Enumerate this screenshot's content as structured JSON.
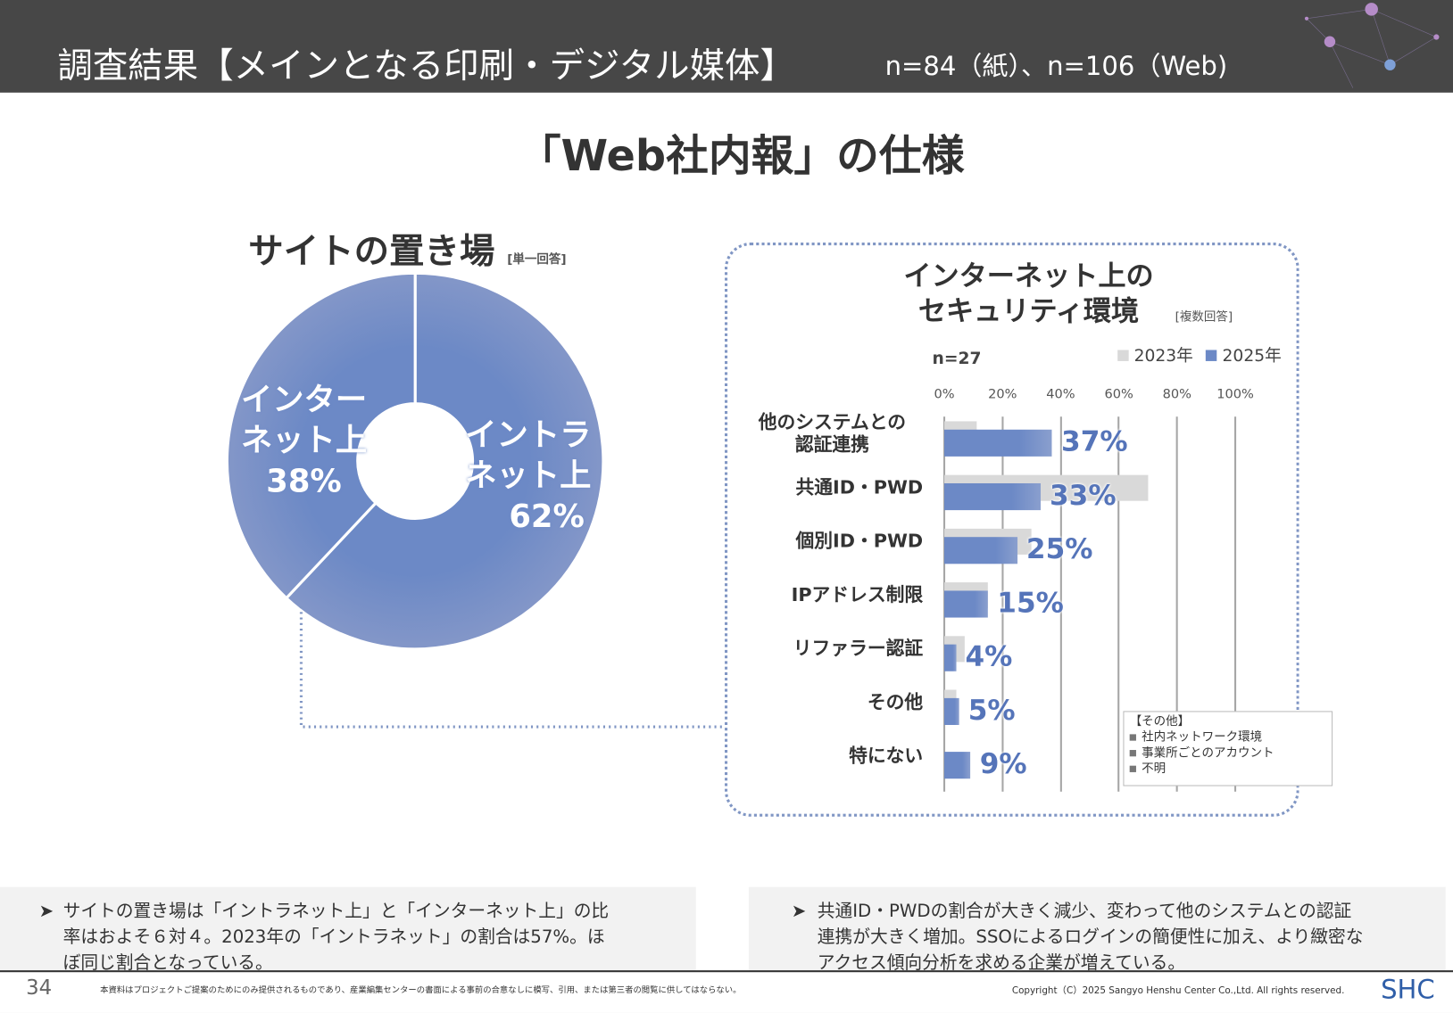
{
  "header": {
    "title": "調査結果【メインとなる印刷・デジタル媒体】",
    "sample": "n=84（紙）、n=106（Web)"
  },
  "main_title": "「Web社内報」の仕様",
  "pie": {
    "title": "サイトの置き場",
    "note": "[単一回答]",
    "slices": [
      {
        "label1": "イントラ",
        "label2": "ネット上",
        "pct": "62%",
        "value": 62
      },
      {
        "label1": "インター",
        "label2": "ネット上",
        "pct": "38%",
        "value": 38
      }
    ],
    "color": "#6c89c6"
  },
  "security": {
    "title1": "インターネット上の",
    "title2": "セキュリティ環境",
    "note": "[複数回答]",
    "n": "n=27",
    "legend": [
      "2023年",
      "2025年"
    ]
  },
  "chart_data": {
    "type": "bar",
    "orientation": "horizontal",
    "categories": [
      [
        "他のシステムとの",
        "認証連携"
      ],
      [
        "共通ID・PWD"
      ],
      [
        "個別ID・PWD"
      ],
      [
        "IPアドレス制限"
      ],
      [
        "リファラー認証"
      ],
      [
        "その他"
      ],
      [
        "特にない"
      ]
    ],
    "series": [
      {
        "name": "2023年",
        "values": [
          11,
          70,
          30,
          15,
          7,
          4,
          0
        ],
        "color": "#d9d9d9"
      },
      {
        "name": "2025年",
        "values": [
          37,
          33,
          25,
          15,
          4,
          5,
          9
        ],
        "color": "#6c89c6",
        "labels": [
          "37%",
          "33%",
          "25%",
          "15%",
          "4%",
          "5%",
          "9%"
        ]
      }
    ],
    "xticks": [
      "0%",
      "20%",
      "40%",
      "60%",
      "80%",
      "100%"
    ],
    "xlim": [
      0,
      100
    ],
    "grid": true,
    "legend": "top-right"
  },
  "other_box": {
    "title": "【その他】",
    "items": [
      "社内ネットワーク環境",
      "事業所ごとのアカウント",
      "不明"
    ]
  },
  "comments": [
    {
      "arrow": "➤",
      "lines": [
        "サイトの置き場は「イントラネット上」と「インターネット上」の比",
        "率はおよそ６対４。2023年の「イントラネット」の割合は57%。ほ",
        "ぼ同じ割合となっている。"
      ]
    },
    {
      "arrow": "➤",
      "lines": [
        "共通ID・PWDの割合が大きく減少、変わって他のシステムとの認証",
        "連携が大きく増加。SSOによるログインの簡便性に加え、より緻密な",
        "アクセス傾向分析を求める企業が増えている。"
      ]
    }
  ],
  "footer": {
    "page": "34",
    "disclaimer": "本資料はプロジェクトご提案のためにのみ提供されるものであり、産業編集センターの書面による事前の合意なしに模写、引用、または第三者の閲覧に供してはならない。",
    "copyright": "Copyright（C）2025 Sangyo Henshu Center Co.,Ltd. All rights reserved.",
    "logo": "SHC"
  }
}
